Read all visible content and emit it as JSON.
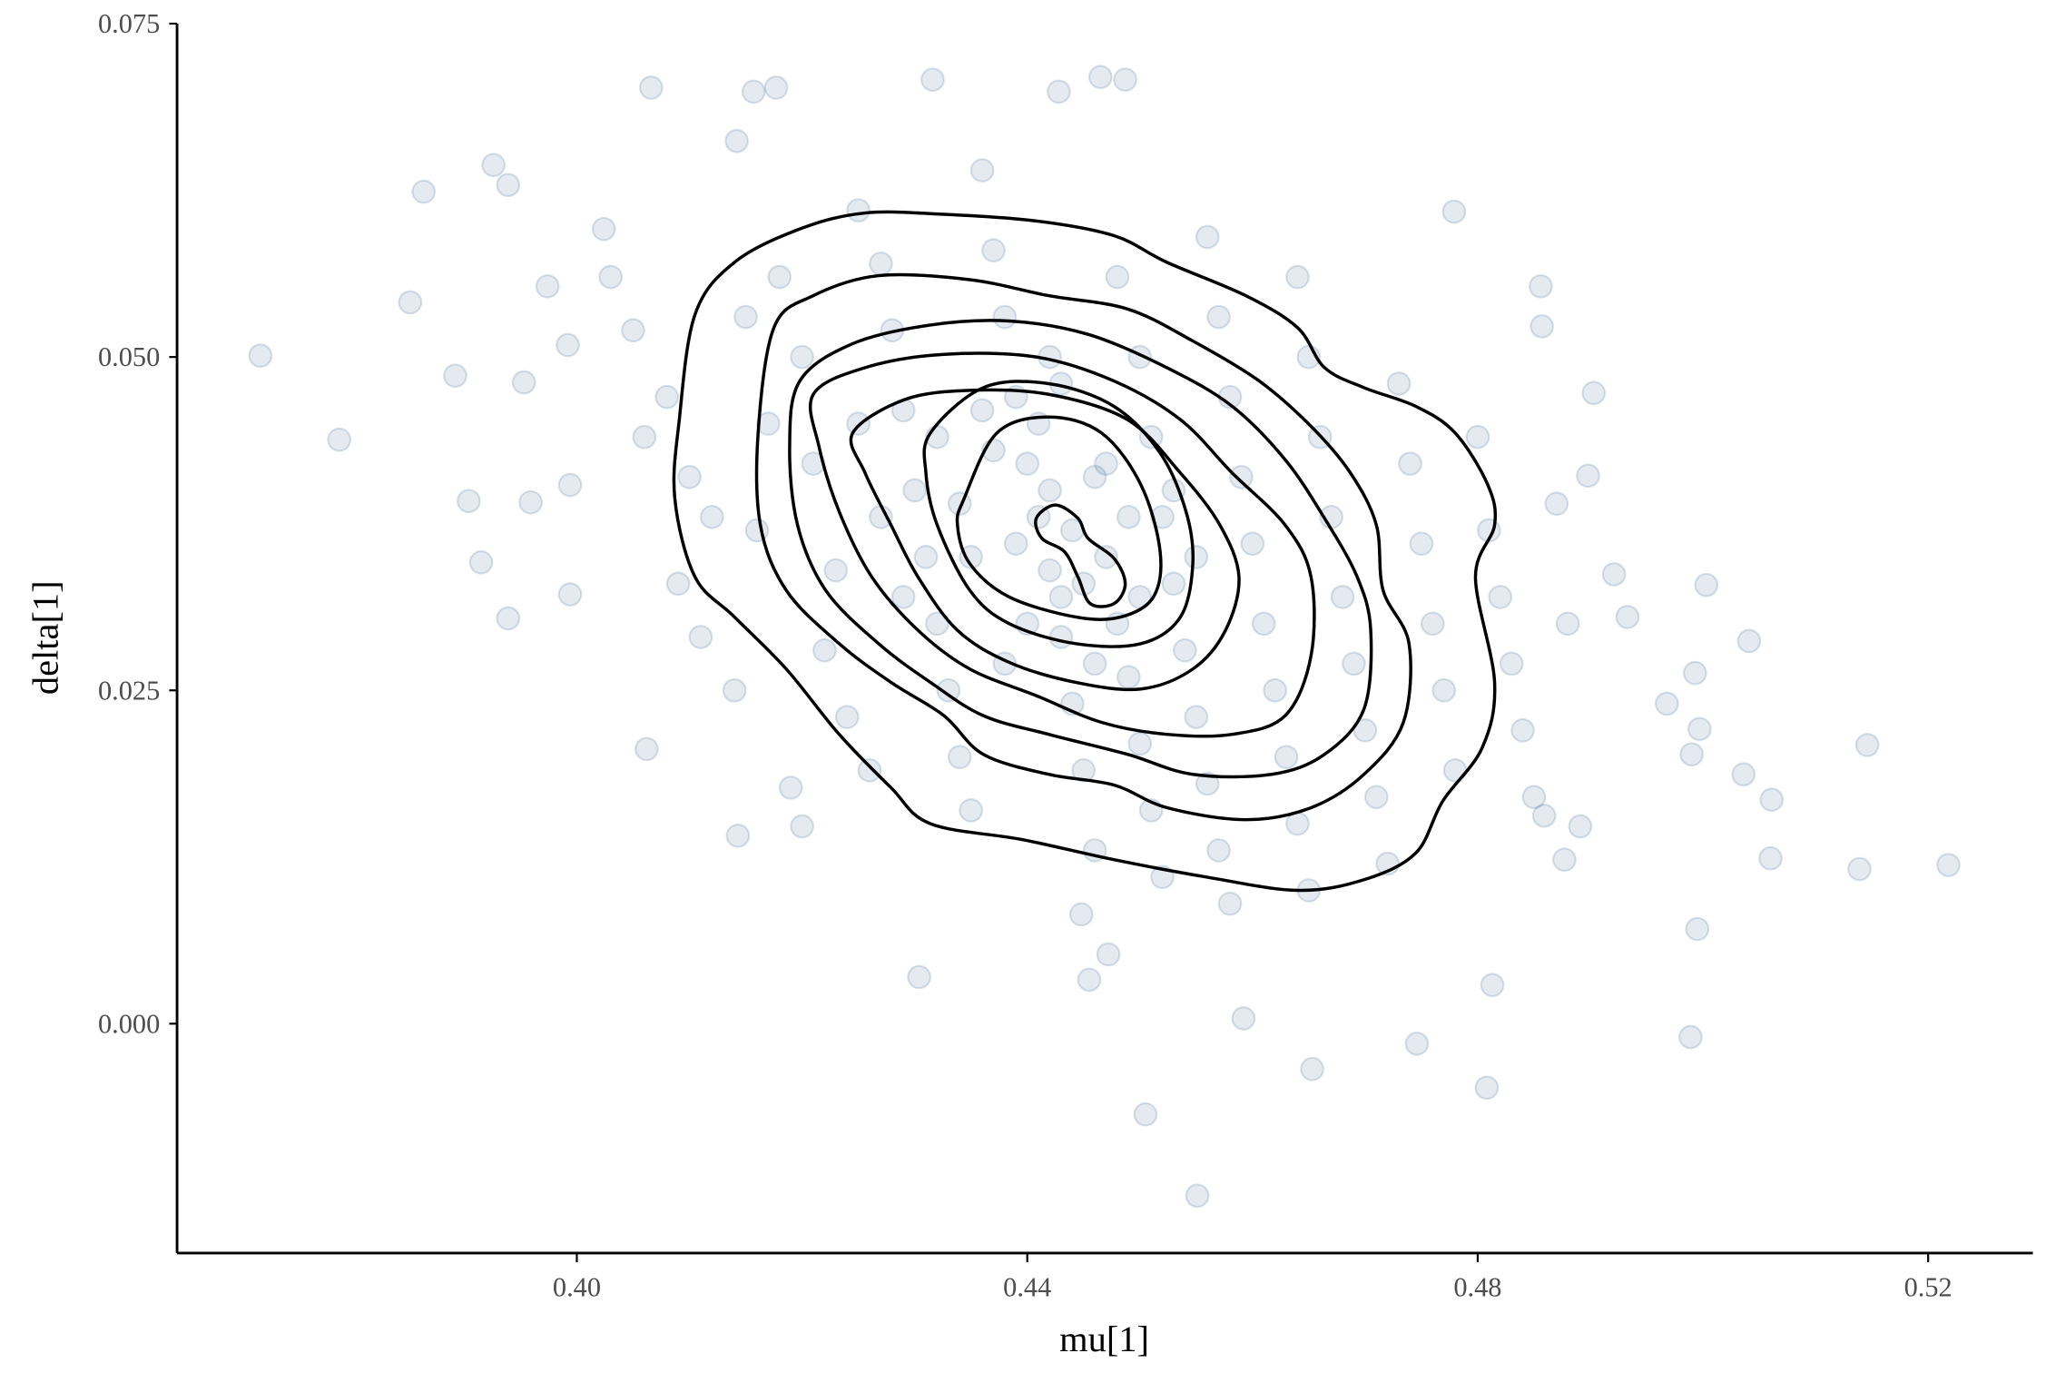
{
  "chart_data": {
    "type": "scatter",
    "title": "",
    "xlabel": "mu[1]",
    "ylabel": "delta[1]",
    "xlim": [
      0.3645,
      0.5293
    ],
    "ylim": [
      -0.0172,
      0.075
    ],
    "xticks": [
      0.4,
      0.44,
      0.48,
      0.52
    ],
    "xtick_labels": [
      "0.40",
      "0.44",
      "0.48",
      "0.52"
    ],
    "yticks": [
      0.0,
      0.025,
      0.05,
      0.075
    ],
    "ytick_labels": [
      "0.000",
      "0.025",
      "0.050",
      "0.075"
    ],
    "grid": false,
    "point_color": "#2c5f8a",
    "point_alpha": 0.13,
    "contour_color": "#000000",
    "points": [
      [
        0.3719,
        0.0501
      ],
      [
        0.3789,
        0.0438
      ],
      [
        0.3852,
        0.0541
      ],
      [
        0.3864,
        0.0624
      ],
      [
        0.3892,
        0.0486
      ],
      [
        0.3904,
        0.0392
      ],
      [
        0.3915,
        0.0346
      ],
      [
        0.3926,
        0.0644
      ],
      [
        0.3939,
        0.0629
      ],
      [
        0.3939,
        0.0304
      ],
      [
        0.3953,
        0.0481
      ],
      [
        0.3959,
        0.0391
      ],
      [
        0.3974,
        0.0553
      ],
      [
        0.3992,
        0.0509
      ],
      [
        0.3994,
        0.0322
      ],
      [
        0.3994,
        0.0404
      ],
      [
        0.4024,
        0.0596
      ],
      [
        0.4062,
        0.0206
      ],
      [
        0.4066,
        0.0702
      ],
      [
        0.4157,
        0.0699
      ],
      [
        0.4177,
        0.0702
      ],
      [
        0.4143,
        0.0141
      ],
      [
        0.419,
        0.0177
      ],
      [
        0.42,
        0.0148
      ],
      [
        0.4142,
        0.0662
      ],
      [
        0.4316,
        0.0708
      ],
      [
        0.4304,
        0.0035
      ],
      [
        0.4428,
        0.0699
      ],
      [
        0.4465,
        0.071
      ],
      [
        0.4487,
        0.0708
      ],
      [
        0.4448,
        0.0082
      ],
      [
        0.4455,
        0.0033
      ],
      [
        0.4472,
        0.0052
      ],
      [
        0.4505,
        -0.0068
      ],
      [
        0.4551,
        -0.0129
      ],
      [
        0.4592,
        0.0004
      ],
      [
        0.4653,
        -0.0034
      ],
      [
        0.4746,
        -0.0015
      ],
      [
        0.4808,
        -0.0048
      ],
      [
        0.4813,
        0.0029
      ],
      [
        0.4779,
        0.0609
      ],
      [
        0.4856,
        0.0553
      ],
      [
        0.4857,
        0.0523
      ],
      [
        0.4903,
        0.0473
      ],
      [
        0.4898,
        0.0411
      ],
      [
        0.4921,
        0.0337
      ],
      [
        0.4933,
        0.0305
      ],
      [
        0.4968,
        0.024
      ],
      [
        0.4989,
        -0.001
      ],
      [
        0.4995,
        0.0071
      ],
      [
        0.5003,
        0.0329
      ],
      [
        0.4993,
        0.0263
      ],
      [
        0.4997,
        0.0221
      ],
      [
        0.499,
        0.0202
      ],
      [
        0.5041,
        0.0287
      ],
      [
        0.5036,
        0.0187
      ],
      [
        0.5061,
        0.0168
      ],
      [
        0.506,
        0.0124
      ],
      [
        0.5139,
        0.0116
      ],
      [
        0.5146,
        0.0209
      ],
      [
        0.5218,
        0.0119
      ],
      [
        0.4891,
        0.0148
      ],
      [
        0.4877,
        0.0123
      ],
      [
        0.4859,
        0.0156
      ],
      [
        0.403,
        0.056
      ],
      [
        0.405,
        0.052
      ],
      [
        0.408,
        0.047
      ],
      [
        0.406,
        0.044
      ],
      [
        0.41,
        0.041
      ],
      [
        0.412,
        0.038
      ],
      [
        0.409,
        0.033
      ],
      [
        0.411,
        0.029
      ],
      [
        0.414,
        0.025
      ],
      [
        0.416,
        0.037
      ],
      [
        0.417,
        0.045
      ],
      [
        0.415,
        0.053
      ],
      [
        0.418,
        0.056
      ],
      [
        0.42,
        0.05
      ],
      [
        0.421,
        0.042
      ],
      [
        0.423,
        0.034
      ],
      [
        0.422,
        0.028
      ],
      [
        0.424,
        0.023
      ],
      [
        0.426,
        0.019
      ],
      [
        0.425,
        0.061
      ],
      [
        0.427,
        0.057
      ],
      [
        0.428,
        0.052
      ],
      [
        0.429,
        0.046
      ],
      [
        0.43,
        0.04
      ],
      [
        0.431,
        0.035
      ],
      [
        0.432,
        0.03
      ],
      [
        0.433,
        0.025
      ],
      [
        0.434,
        0.02
      ],
      [
        0.435,
        0.016
      ],
      [
        0.436,
        0.064
      ],
      [
        0.437,
        0.058
      ],
      [
        0.438,
        0.053
      ],
      [
        0.439,
        0.047
      ],
      [
        0.44,
        0.042
      ],
      [
        0.441,
        0.038
      ],
      [
        0.442,
        0.034
      ],
      [
        0.443,
        0.029
      ],
      [
        0.444,
        0.024
      ],
      [
        0.445,
        0.019
      ],
      [
        0.446,
        0.013
      ],
      [
        0.437,
        0.043
      ],
      [
        0.439,
        0.036
      ],
      [
        0.441,
        0.045
      ],
      [
        0.442,
        0.04
      ],
      [
        0.444,
        0.037
      ],
      [
        0.445,
        0.033
      ],
      [
        0.446,
        0.041
      ],
      [
        0.447,
        0.035
      ],
      [
        0.448,
        0.03
      ],
      [
        0.449,
        0.026
      ],
      [
        0.45,
        0.021
      ],
      [
        0.451,
        0.016
      ],
      [
        0.452,
        0.011
      ],
      [
        0.448,
        0.056
      ],
      [
        0.45,
        0.05
      ],
      [
        0.451,
        0.044
      ],
      [
        0.452,
        0.038
      ],
      [
        0.453,
        0.033
      ],
      [
        0.454,
        0.028
      ],
      [
        0.455,
        0.023
      ],
      [
        0.456,
        0.018
      ],
      [
        0.457,
        0.013
      ],
      [
        0.458,
        0.009
      ],
      [
        0.456,
        0.059
      ],
      [
        0.457,
        0.053
      ],
      [
        0.458,
        0.047
      ],
      [
        0.459,
        0.041
      ],
      [
        0.46,
        0.036
      ],
      [
        0.461,
        0.03
      ],
      [
        0.462,
        0.025
      ],
      [
        0.463,
        0.02
      ],
      [
        0.464,
        0.015
      ],
      [
        0.465,
        0.01
      ],
      [
        0.464,
        0.056
      ],
      [
        0.465,
        0.05
      ],
      [
        0.466,
        0.044
      ],
      [
        0.467,
        0.038
      ],
      [
        0.468,
        0.032
      ],
      [
        0.469,
        0.027
      ],
      [
        0.47,
        0.022
      ],
      [
        0.471,
        0.017
      ],
      [
        0.472,
        0.012
      ],
      [
        0.473,
        0.048
      ],
      [
        0.474,
        0.042
      ],
      [
        0.475,
        0.036
      ],
      [
        0.476,
        0.03
      ],
      [
        0.477,
        0.025
      ],
      [
        0.478,
        0.019
      ],
      [
        0.48,
        0.044
      ],
      [
        0.481,
        0.037
      ],
      [
        0.482,
        0.032
      ],
      [
        0.483,
        0.027
      ],
      [
        0.484,
        0.022
      ],
      [
        0.485,
        0.017
      ],
      [
        0.487,
        0.039
      ],
      [
        0.488,
        0.03
      ],
      [
        0.432,
        0.044
      ],
      [
        0.434,
        0.039
      ],
      [
        0.435,
        0.035
      ],
      [
        0.436,
        0.046
      ],
      [
        0.443,
        0.048
      ],
      [
        0.443,
        0.032
      ],
      [
        0.447,
        0.042
      ],
      [
        0.449,
        0.038
      ],
      [
        0.45,
        0.032
      ],
      [
        0.453,
        0.04
      ],
      [
        0.455,
        0.035
      ],
      [
        0.427,
        0.038
      ],
      [
        0.429,
        0.032
      ],
      [
        0.425,
        0.045
      ],
      [
        0.44,
        0.03
      ],
      [
        0.438,
        0.027
      ],
      [
        0.442,
        0.05
      ],
      [
        0.446,
        0.027
      ]
    ],
    "contours": [
      [
        [
          0.4105,
          0.0532
        ],
        [
          0.414,
          0.0571
        ],
        [
          0.4198,
          0.0596
        ],
        [
          0.4256,
          0.0608
        ],
        [
          0.4326,
          0.0607
        ],
        [
          0.4408,
          0.0602
        ],
        [
          0.4477,
          0.0591
        ],
        [
          0.4524,
          0.0571
        ],
        [
          0.4594,
          0.0546
        ],
        [
          0.464,
          0.0522
        ],
        [
          0.4664,
          0.0492
        ],
        [
          0.4699,
          0.0477
        ],
        [
          0.4745,
          0.0463
        ],
        [
          0.478,
          0.0443
        ],
        [
          0.4809,
          0.0404
        ],
        [
          0.4815,
          0.0374
        ],
        [
          0.4798,
          0.0335
        ],
        [
          0.4815,
          0.0256
        ],
        [
          0.4804,
          0.0207
        ],
        [
          0.4769,
          0.0167
        ],
        [
          0.4745,
          0.0128
        ],
        [
          0.4699,
          0.0108
        ],
        [
          0.464,
          0.01
        ],
        [
          0.4559,
          0.011
        ],
        [
          0.4477,
          0.0123
        ],
        [
          0.4396,
          0.0138
        ],
        [
          0.4314,
          0.015
        ],
        [
          0.4279,
          0.0177
        ],
        [
          0.4233,
          0.0217
        ],
        [
          0.4186,
          0.0266
        ],
        [
          0.414,
          0.0305
        ],
        [
          0.4105,
          0.0335
        ],
        [
          0.4087,
          0.0394
        ],
        [
          0.4091,
          0.0453
        ]
      ],
      [
        [
          0.4175,
          0.0522
        ],
        [
          0.421,
          0.0546
        ],
        [
          0.4268,
          0.0561
        ],
        [
          0.4349,
          0.0558
        ],
        [
          0.4419,
          0.0546
        ],
        [
          0.4489,
          0.0536
        ],
        [
          0.4547,
          0.0512
        ],
        [
          0.4606,
          0.0482
        ],
        [
          0.4652,
          0.0448
        ],
        [
          0.4687,
          0.0413
        ],
        [
          0.471,
          0.0374
        ],
        [
          0.4716,
          0.0325
        ],
        [
          0.4739,
          0.0285
        ],
        [
          0.4734,
          0.0226
        ],
        [
          0.4699,
          0.0187
        ],
        [
          0.4652,
          0.0162
        ],
        [
          0.4594,
          0.0153
        ],
        [
          0.4524,
          0.0162
        ],
        [
          0.4477,
          0.0179
        ],
        [
          0.4419,
          0.0187
        ],
        [
          0.4361,
          0.0202
        ],
        [
          0.4326,
          0.0231
        ],
        [
          0.4279,
          0.0256
        ],
        [
          0.4233,
          0.0285
        ],
        [
          0.4186,
          0.0325
        ],
        [
          0.4163,
          0.0374
        ],
        [
          0.4161,
          0.0443
        ]
      ],
      [
        [
          0.4198,
          0.0482
        ],
        [
          0.4245,
          0.051
        ],
        [
          0.4314,
          0.0524
        ],
        [
          0.4384,
          0.0527
        ],
        [
          0.4454,
          0.0517
        ],
        [
          0.4524,
          0.0492
        ],
        [
          0.4582,
          0.0463
        ],
        [
          0.4629,
          0.0423
        ],
        [
          0.4664,
          0.0379
        ],
        [
          0.4693,
          0.0335
        ],
        [
          0.4705,
          0.0295
        ],
        [
          0.4699,
          0.0236
        ],
        [
          0.4664,
          0.0202
        ],
        [
          0.4617,
          0.0187
        ],
        [
          0.4547,
          0.0187
        ],
        [
          0.4489,
          0.0202
        ],
        [
          0.4419,
          0.0217
        ],
        [
          0.4361,
          0.0231
        ],
        [
          0.4314,
          0.0256
        ],
        [
          0.4268,
          0.0285
        ],
        [
          0.4221,
          0.0325
        ],
        [
          0.4196,
          0.0374
        ],
        [
          0.4189,
          0.0433
        ]
      ],
      [
        [
          0.421,
          0.0472
        ],
        [
          0.4256,
          0.0492
        ],
        [
          0.4326,
          0.0502
        ],
        [
          0.4408,
          0.05
        ],
        [
          0.4477,
          0.0482
        ],
        [
          0.4536,
          0.0453
        ],
        [
          0.4582,
          0.0413
        ],
        [
          0.4629,
          0.0374
        ],
        [
          0.4652,
          0.0335
        ],
        [
          0.4652,
          0.0276
        ],
        [
          0.4629,
          0.0231
        ],
        [
          0.4582,
          0.0217
        ],
        [
          0.4524,
          0.0217
        ],
        [
          0.4466,
          0.0226
        ],
        [
          0.4408,
          0.0246
        ],
        [
          0.4349,
          0.0266
        ],
        [
          0.4303,
          0.0295
        ],
        [
          0.4262,
          0.0335
        ],
        [
          0.4233,
          0.0384
        ],
        [
          0.4215,
          0.0433
        ]
      ],
      [
        [
          0.4245,
          0.0443
        ],
        [
          0.4291,
          0.0468
        ],
        [
          0.4349,
          0.0475
        ],
        [
          0.4419,
          0.0472
        ],
        [
          0.4489,
          0.0453
        ],
        [
          0.4536,
          0.0413
        ],
        [
          0.4571,
          0.0374
        ],
        [
          0.4588,
          0.0335
        ],
        [
          0.4576,
          0.0295
        ],
        [
          0.4547,
          0.0266
        ],
        [
          0.4501,
          0.0251
        ],
        [
          0.4443,
          0.0256
        ],
        [
          0.4384,
          0.0271
        ],
        [
          0.4338,
          0.0295
        ],
        [
          0.4303,
          0.0335
        ],
        [
          0.4279,
          0.0374
        ],
        [
          0.4256,
          0.0413
        ]
      ],
      [
        [
          0.4314,
          0.0443
        ],
        [
          0.4361,
          0.0477
        ],
        [
          0.4419,
          0.048
        ],
        [
          0.4477,
          0.0463
        ],
        [
          0.4518,
          0.0428
        ],
        [
          0.4541,
          0.0384
        ],
        [
          0.4547,
          0.0345
        ],
        [
          0.4536,
          0.0305
        ],
        [
          0.4501,
          0.0285
        ],
        [
          0.4443,
          0.0285
        ],
        [
          0.4384,
          0.03
        ],
        [
          0.4349,
          0.0325
        ],
        [
          0.432,
          0.0374
        ],
        [
          0.431,
          0.0413
        ]
      ],
      [
        [
          0.4344,
          0.0394
        ],
        [
          0.4373,
          0.0443
        ],
        [
          0.4419,
          0.0455
        ],
        [
          0.4466,
          0.0443
        ],
        [
          0.4501,
          0.0404
        ],
        [
          0.4518,
          0.0354
        ],
        [
          0.4512,
          0.032
        ],
        [
          0.4483,
          0.0305
        ],
        [
          0.4443,
          0.0305
        ],
        [
          0.4384,
          0.032
        ],
        [
          0.4349,
          0.0345
        ],
        [
          0.4338,
          0.0374
        ]
      ],
      [
        [
          0.4408,
          0.0379
        ],
        [
          0.4425,
          0.0389
        ],
        [
          0.4445,
          0.0379
        ],
        [
          0.4454,
          0.0364
        ],
        [
          0.4477,
          0.0349
        ],
        [
          0.4487,
          0.033
        ],
        [
          0.4477,
          0.0315
        ],
        [
          0.4456,
          0.0315
        ],
        [
          0.4445,
          0.0335
        ],
        [
          0.4433,
          0.0354
        ],
        [
          0.4413,
          0.0364
        ]
      ]
    ]
  }
}
